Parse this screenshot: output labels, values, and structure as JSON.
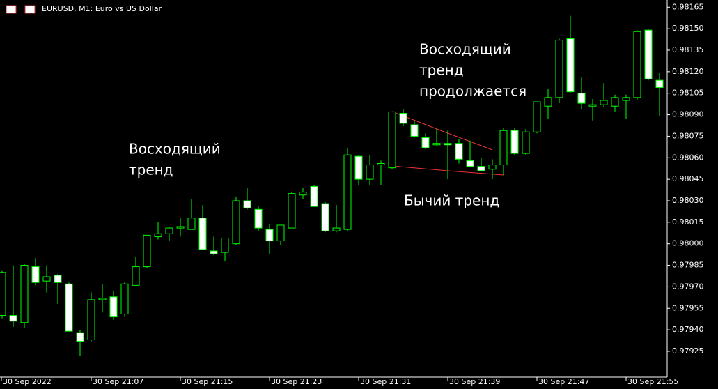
{
  "chart_data": {
    "type": "candlestick",
    "title": "EURUSD, M1:  Euro vs US Dollar",
    "categories": [
      "30 Sep 2022",
      null,
      null,
      null,
      null,
      null,
      null,
      null,
      "30 Sep 21:07",
      null,
      null,
      null,
      null,
      null,
      null,
      null,
      "30 Sep 21:15",
      null,
      null,
      null,
      null,
      null,
      null,
      null,
      "30 Sep 21:23",
      null,
      null,
      null,
      null,
      null,
      null,
      null,
      "30 Sep 21:31",
      null,
      null,
      null,
      null,
      null,
      null,
      null,
      "30 Sep 21:39",
      null,
      null,
      null,
      null,
      null,
      null,
      null,
      "30 Sep 21:47",
      null,
      null,
      null,
      null,
      null,
      null,
      null,
      "30 Sep 21:55",
      null,
      null,
      null
    ],
    "open": [
      0.9795,
      0.9795,
      0.97945,
      0.97984,
      0.97974,
      0.97978,
      0.97972,
      0.97938,
      0.97933,
      0.97961,
      0.97963,
      0.97951,
      0.97971,
      0.97984,
      0.98005,
      0.98007,
      0.98011,
      0.9801,
      0.98018,
      0.97995,
      0.97994,
      0.98,
      0.9803,
      0.98024,
      0.9801,
      0.98002,
      0.98011,
      0.98034,
      0.9804,
      0.98028,
      0.98009,
      0.9801,
      0.98061,
      0.98045,
      0.98055,
      0.98053,
      0.98091,
      0.98083,
      0.98074,
      0.98069,
      0.9807,
      0.9807,
      0.98058,
      0.98054,
      0.98052,
      0.98055,
      0.98079,
      0.98063,
      0.98078,
      0.98096,
      0.98102,
      0.98143,
      0.98105,
      0.98096,
      0.98097,
      0.98096,
      0.981,
      0.98102,
      0.98149,
      0.98114
    ],
    "high": [
      0.97981,
      0.97985,
      0.97986,
      0.9799,
      0.97985,
      0.97979,
      0.97973,
      0.9794,
      0.97966,
      0.97972,
      0.97967,
      0.97973,
      0.97991,
      0.98006,
      0.98015,
      0.98012,
      0.98018,
      0.98031,
      0.98027,
      0.98005,
      0.98004,
      0.98033,
      0.98039,
      0.98026,
      0.98014,
      0.98013,
      0.98036,
      0.98039,
      0.98041,
      0.98029,
      0.98027,
      0.98067,
      0.98062,
      0.98062,
      0.98058,
      0.98092,
      0.98094,
      0.98086,
      0.98077,
      0.9808,
      0.98079,
      0.98073,
      0.98072,
      0.9806,
      0.98059,
      0.98081,
      0.98081,
      0.9808,
      0.98099,
      0.98108,
      0.98143,
      0.98159,
      0.98116,
      0.98101,
      0.98112,
      0.98104,
      0.98104,
      0.98149,
      0.9815,
      0.98119
    ],
    "low": [
      0.97948,
      0.97942,
      0.97941,
      0.97971,
      0.97966,
      0.97958,
      0.97939,
      0.97922,
      0.97932,
      0.97952,
      0.97947,
      0.97949,
      0.97971,
      0.97983,
      0.98003,
      0.98002,
      0.98005,
      0.9801,
      0.97996,
      0.97992,
      0.97988,
      0.97999,
      0.98024,
      0.98009,
      0.97993,
      0.97999,
      0.98011,
      0.98031,
      0.98026,
      0.98008,
      0.98008,
      0.98009,
      0.98041,
      0.98041,
      0.98041,
      0.98052,
      0.98082,
      0.98074,
      0.98066,
      0.98068,
      0.98045,
      0.98056,
      0.98054,
      0.98051,
      0.98045,
      0.98048,
      0.98062,
      0.98062,
      0.98077,
      0.98087,
      0.98098,
      0.98105,
      0.98094,
      0.98086,
      0.98095,
      0.98092,
      0.98087,
      0.981,
      0.98114,
      0.98089
    ],
    "close": [
      0.9798,
      0.97946,
      0.97985,
      0.97973,
      0.97977,
      0.97973,
      0.97939,
      0.97932,
      0.97961,
      0.97962,
      0.97949,
      0.97972,
      0.97984,
      0.98006,
      0.98007,
      0.98011,
      0.98012,
      0.98018,
      0.97996,
      0.97993,
      0.98004,
      0.9803,
      0.98025,
      0.98011,
      0.98002,
      0.98013,
      0.98035,
      0.98036,
      0.98026,
      0.98009,
      0.98011,
      0.98062,
      0.98045,
      0.98055,
      0.98056,
      0.98092,
      0.98084,
      0.98075,
      0.98067,
      0.9807,
      0.98069,
      0.98059,
      0.98054,
      0.98051,
      0.98055,
      0.98079,
      0.98063,
      0.98078,
      0.98099,
      0.98102,
      0.98142,
      0.98106,
      0.98098,
      0.98097,
      0.981,
      0.98102,
      0.98102,
      0.98148,
      0.98115,
      0.98109
    ],
    "up_color": "#00ff00",
    "down_color": "#ffffff",
    "ylim": [
      0.97907,
      0.9817
    ],
    "yticks": [
      0.98165,
      {
        "value": 0.9815,
        "label": "0.98150"
      },
      0.98135,
      {
        "value": 0.9812,
        "label": "0.98120"
      },
      0.98105,
      {
        "value": 0.9809,
        "label": "0.98090"
      },
      0.98075,
      {
        "value": 0.9806,
        "label": "0.98060"
      },
      0.98045,
      {
        "value": 0.9803,
        "label": "0.98030"
      },
      0.98015,
      {
        "value": 0.98,
        "label": "0.98000"
      },
      0.97985,
      {
        "value": 0.9797,
        "label": "0.97970"
      },
      0.97955,
      {
        "value": 0.9794,
        "label": "0.97940"
      },
      0.97925
    ],
    "annotations": [
      {
        "lines": [
          "Восходящий",
          "тренд"
        ]
      },
      {
        "lines": [
          "Восходящий",
          "тренд",
          "продолжается"
        ]
      },
      {
        "lines": [
          "Бычий тренд"
        ]
      }
    ]
  }
}
